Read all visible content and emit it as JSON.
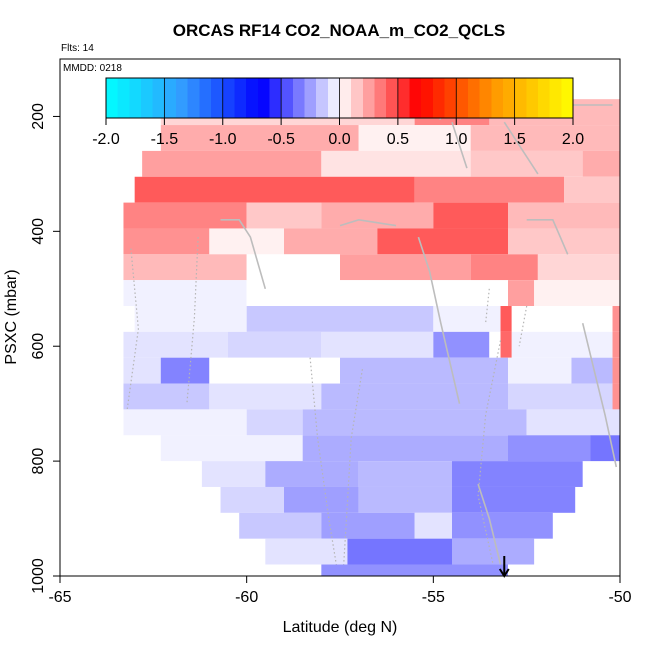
{
  "chart_data": {
    "type": "heatmap",
    "title": "ORCAS RF14 CO2_NOAA_m_CO2_QCLS",
    "flights_label": "Flts: 14",
    "date_label": "MMDD: 0218",
    "xlabel": "Latitude (deg N)",
    "ylabel": "PSXC (mbar)",
    "xlim": [
      -65,
      -50
    ],
    "ylim": [
      1000,
      100
    ],
    "x_ticks": [
      -65,
      -60,
      -55,
      -50
    ],
    "y_ticks": [
      200,
      400,
      600,
      800,
      1000
    ],
    "colorbar": {
      "range": [
        -2.0,
        2.0
      ],
      "ticks": [
        "-2.0",
        "-1.5",
        "-1.0",
        "-0.5",
        "0.0",
        "0.5",
        "1.0",
        "1.5",
        "2.0"
      ],
      "colors": [
        "#00ffff",
        "#3399ff",
        "#0000ff",
        "#ffffff",
        "#ff0000",
        "#ff9900",
        "#ffff00"
      ]
    },
    "cells": [
      {
        "lat0": -62.3,
        "lat1": -50,
        "p0": 170,
        "p1": 215,
        "value": 0.15
      },
      {
        "lat0": -55.5,
        "lat1": -53.5,
        "p0": 170,
        "p1": 215,
        "value": 0.45
      },
      {
        "lat0": -53.5,
        "lat1": -50,
        "p0": 170,
        "p1": 215,
        "value": 0.25
      },
      {
        "lat0": -62.3,
        "lat1": -57,
        "p0": 215,
        "p1": 260,
        "value": 0.3
      },
      {
        "lat0": -57,
        "lat1": -54,
        "p0": 215,
        "p1": 260,
        "value": 0.05
      },
      {
        "lat0": -54,
        "lat1": -50,
        "p0": 215,
        "p1": 260,
        "value": 0.25
      },
      {
        "lat0": -62.8,
        "lat1": -58,
        "p0": 260,
        "p1": 305,
        "value": 0.35
      },
      {
        "lat0": -58,
        "lat1": -54,
        "p0": 260,
        "p1": 305,
        "value": 0.1
      },
      {
        "lat0": -54,
        "lat1": -51,
        "p0": 260,
        "p1": 305,
        "value": 0.2
      },
      {
        "lat0": -51,
        "lat1": -50,
        "p0": 260,
        "p1": 305,
        "value": 0.3
      },
      {
        "lat0": -63,
        "lat1": -55.5,
        "p0": 305,
        "p1": 350,
        "value": 0.6
      },
      {
        "lat0": -55.5,
        "lat1": -51.5,
        "p0": 305,
        "p1": 350,
        "value": 0.45
      },
      {
        "lat0": -51.5,
        "lat1": -50,
        "p0": 305,
        "p1": 350,
        "value": 0.2
      },
      {
        "lat0": -63.3,
        "lat1": -60,
        "p0": 350,
        "p1": 395,
        "value": 0.45
      },
      {
        "lat0": -60,
        "lat1": -58,
        "p0": 350,
        "p1": 395,
        "value": 0.2
      },
      {
        "lat0": -58,
        "lat1": -55,
        "p0": 350,
        "p1": 395,
        "value": 0.3
      },
      {
        "lat0": -55,
        "lat1": -53,
        "p0": 350,
        "p1": 395,
        "value": 0.6
      },
      {
        "lat0": -53,
        "lat1": -50,
        "p0": 350,
        "p1": 395,
        "value": 0.25
      },
      {
        "lat0": -63.3,
        "lat1": -61,
        "p0": 395,
        "p1": 440,
        "value": 0.4
      },
      {
        "lat0": -61,
        "lat1": -59,
        "p0": 395,
        "p1": 440,
        "value": 0.05
      },
      {
        "lat0": -59,
        "lat1": -56.5,
        "p0": 395,
        "p1": 440,
        "value": 0.3
      },
      {
        "lat0": -56.5,
        "lat1": -53,
        "p0": 395,
        "p1": 440,
        "value": 0.6
      },
      {
        "lat0": -53,
        "lat1": -50,
        "p0": 395,
        "p1": 440,
        "value": 0.2
      },
      {
        "lat0": -63.3,
        "lat1": -60,
        "p0": 440,
        "p1": 485,
        "value": 0.25
      },
      {
        "lat0": -60,
        "lat1": -57.5,
        "p0": 440,
        "p1": 485,
        "value": 0.0
      },
      {
        "lat0": -57.5,
        "lat1": -54,
        "p0": 440,
        "p1": 485,
        "value": 0.35
      },
      {
        "lat0": -54,
        "lat1": -52.2,
        "p0": 440,
        "p1": 485,
        "value": 0.45
      },
      {
        "lat0": -52.2,
        "lat1": -50,
        "p0": 440,
        "p1": 485,
        "value": 0.15
      },
      {
        "lat0": -63.3,
        "lat1": -60,
        "p0": 485,
        "p1": 530,
        "value": -0.05
      },
      {
        "lat0": -60,
        "lat1": -53,
        "p0": 485,
        "p1": 530,
        "value": 0.0
      },
      {
        "lat0": -53,
        "lat1": -52.3,
        "p0": 485,
        "p1": 530,
        "value": 0.35
      },
      {
        "lat0": -52.3,
        "lat1": -50,
        "p0": 485,
        "p1": 530,
        "value": 0.05
      },
      {
        "lat0": -63,
        "lat1": -60,
        "p0": 530,
        "p1": 575,
        "value": -0.05
      },
      {
        "lat0": -60,
        "lat1": -55,
        "p0": 530,
        "p1": 575,
        "value": -0.2
      },
      {
        "lat0": -55,
        "lat1": -53.2,
        "p0": 530,
        "p1": 575,
        "value": -0.05
      },
      {
        "lat0": -53.2,
        "lat1": -52.9,
        "p0": 530,
        "p1": 575,
        "value": 0.6
      },
      {
        "lat0": -52.9,
        "lat1": -50.2,
        "p0": 530,
        "p1": 575,
        "value": 0.0
      },
      {
        "lat0": -50.2,
        "lat1": -50,
        "p0": 530,
        "p1": 575,
        "value": 0.4
      },
      {
        "lat0": -63.3,
        "lat1": -60.5,
        "p0": 575,
        "p1": 620,
        "value": -0.1
      },
      {
        "lat0": -60.5,
        "lat1": -58,
        "p0": 575,
        "p1": 620,
        "value": -0.15
      },
      {
        "lat0": -58,
        "lat1": -55,
        "p0": 575,
        "p1": 620,
        "value": -0.1
      },
      {
        "lat0": -55,
        "lat1": -53.5,
        "p0": 575,
        "p1": 620,
        "value": -0.4
      },
      {
        "lat0": -53.5,
        "lat1": -53.2,
        "p0": 575,
        "p1": 620,
        "value": 0.0
      },
      {
        "lat0": -53.2,
        "lat1": -52.9,
        "p0": 575,
        "p1": 620,
        "value": 0.55
      },
      {
        "lat0": -52.9,
        "lat1": -50.2,
        "p0": 575,
        "p1": 620,
        "value": -0.05
      },
      {
        "lat0": -50.2,
        "lat1": -50,
        "p0": 575,
        "p1": 620,
        "value": 0.4
      },
      {
        "lat0": -63.3,
        "lat1": -61,
        "p0": 620,
        "p1": 665,
        "value": -0.1
      },
      {
        "lat0": -62.3,
        "lat1": -61,
        "p0": 620,
        "p1": 665,
        "value": -0.45
      },
      {
        "lat0": -61,
        "lat1": -57.5,
        "p0": 620,
        "p1": 665,
        "value": 0.0
      },
      {
        "lat0": -57.5,
        "lat1": -53,
        "p0": 620,
        "p1": 665,
        "value": -0.25
      },
      {
        "lat0": -53,
        "lat1": -51.3,
        "p0": 620,
        "p1": 665,
        "value": -0.05
      },
      {
        "lat0": -51.3,
        "lat1": -50.2,
        "p0": 620,
        "p1": 665,
        "value": -0.25
      },
      {
        "lat0": -50.2,
        "lat1": -50,
        "p0": 620,
        "p1": 665,
        "value": 0.4
      },
      {
        "lat0": -63.3,
        "lat1": -61,
        "p0": 665,
        "p1": 710,
        "value": -0.2
      },
      {
        "lat0": -61,
        "lat1": -58,
        "p0": 665,
        "p1": 710,
        "value": -0.1
      },
      {
        "lat0": -58,
        "lat1": -53,
        "p0": 665,
        "p1": 710,
        "value": -0.25
      },
      {
        "lat0": -53,
        "lat1": -50.2,
        "p0": 665,
        "p1": 710,
        "value": -0.15
      },
      {
        "lat0": -50.2,
        "lat1": -50,
        "p0": 665,
        "p1": 710,
        "value": 0.4
      },
      {
        "lat0": -63.3,
        "lat1": -60,
        "p0": 710,
        "p1": 755,
        "value": -0.05
      },
      {
        "lat0": -60,
        "lat1": -58.5,
        "p0": 710,
        "p1": 755,
        "value": -0.15
      },
      {
        "lat0": -58.5,
        "lat1": -52.5,
        "p0": 710,
        "p1": 755,
        "value": -0.25
      },
      {
        "lat0": -52.5,
        "lat1": -50,
        "p0": 710,
        "p1": 755,
        "value": -0.1
      },
      {
        "lat0": -62.3,
        "lat1": -58.5,
        "p0": 755,
        "p1": 800,
        "value": -0.05
      },
      {
        "lat0": -58.5,
        "lat1": -53,
        "p0": 755,
        "p1": 800,
        "value": -0.3
      },
      {
        "lat0": -53,
        "lat1": -50.8,
        "p0": 755,
        "p1": 800,
        "value": -0.4
      },
      {
        "lat0": -50.8,
        "lat1": -50,
        "p0": 755,
        "p1": 800,
        "value": -0.5
      },
      {
        "lat0": -61.2,
        "lat1": -59.5,
        "p0": 800,
        "p1": 845,
        "value": -0.1
      },
      {
        "lat0": -59.5,
        "lat1": -57,
        "p0": 800,
        "p1": 845,
        "value": -0.3
      },
      {
        "lat0": -57,
        "lat1": -54.5,
        "p0": 800,
        "p1": 845,
        "value": -0.25
      },
      {
        "lat0": -54.5,
        "lat1": -51,
        "p0": 800,
        "p1": 845,
        "value": -0.45
      },
      {
        "lat0": -60.7,
        "lat1": -59,
        "p0": 845,
        "p1": 890,
        "value": -0.15
      },
      {
        "lat0": -59,
        "lat1": -57,
        "p0": 845,
        "p1": 890,
        "value": -0.35
      },
      {
        "lat0": -57,
        "lat1": -54.5,
        "p0": 845,
        "p1": 890,
        "value": -0.25
      },
      {
        "lat0": -54.5,
        "lat1": -51.2,
        "p0": 845,
        "p1": 890,
        "value": -0.45
      },
      {
        "lat0": -60.2,
        "lat1": -58,
        "p0": 890,
        "p1": 935,
        "value": -0.2
      },
      {
        "lat0": -58,
        "lat1": -55.5,
        "p0": 890,
        "p1": 935,
        "value": -0.35
      },
      {
        "lat0": -55.5,
        "lat1": -54.5,
        "p0": 890,
        "p1": 935,
        "value": -0.1
      },
      {
        "lat0": -54.5,
        "lat1": -51.8,
        "p0": 890,
        "p1": 935,
        "value": -0.4
      },
      {
        "lat0": -59.5,
        "lat1": -57.3,
        "p0": 935,
        "p1": 980,
        "value": -0.1
      },
      {
        "lat0": -57.3,
        "lat1": -54.5,
        "p0": 935,
        "p1": 980,
        "value": -0.5
      },
      {
        "lat0": -54.5,
        "lat1": -52.3,
        "p0": 935,
        "p1": 980,
        "value": -0.3
      },
      {
        "lat0": -58,
        "lat1": -53,
        "p0": 980,
        "p1": 1000,
        "value": -0.4
      }
    ],
    "flight_tracks": [
      [
        [
          -62.4,
          180
        ],
        [
          -61,
          180
        ],
        [
          -57,
          180
        ],
        [
          -55.5,
          180
        ],
        [
          -54.8,
          205
        ]
      ],
      [
        [
          -53.4,
          180
        ],
        [
          -51.5,
          180
        ],
        [
          -50.2,
          180
        ]
      ],
      [
        [
          -54.5,
          210
        ],
        [
          -54.1,
          290
        ]
      ],
      [
        [
          -53.1,
          210
        ],
        [
          -52.6,
          260
        ],
        [
          -52.2,
          300
        ]
      ],
      [
        [
          -60.7,
          380
        ],
        [
          -60.2,
          380
        ],
        [
          -59.9,
          410
        ],
        [
          -59.5,
          500
        ]
      ],
      [
        [
          -57.5,
          390
        ],
        [
          -57,
          380
        ],
        [
          -56.5,
          385
        ],
        [
          -56,
          390
        ]
      ],
      [
        [
          -55.4,
          410
        ],
        [
          -55.1,
          470
        ],
        [
          -54.8,
          560
        ],
        [
          -54.3,
          700
        ]
      ],
      [
        [
          -52.5,
          380
        ],
        [
          -51.8,
          380
        ],
        [
          -51.6,
          410
        ],
        [
          -51.4,
          440
        ]
      ],
      [
        [
          -53.8,
          840
        ],
        [
          -53.5,
          900
        ],
        [
          -53.2,
          980
        ]
      ],
      [
        [
          -51,
          560
        ],
        [
          -50.4,
          720
        ],
        [
          -50.1,
          810
        ]
      ]
    ],
    "dotted_tracks": [
      [
        [
          -63.1,
          430
        ],
        [
          -62.9,
          570
        ],
        [
          -63.2,
          710
        ]
      ],
      [
        [
          -61.3,
          410
        ],
        [
          -61.4,
          550
        ],
        [
          -61.6,
          700
        ]
      ],
      [
        [
          -58.3,
          620
        ],
        [
          -58.1,
          760
        ],
        [
          -57.8,
          900
        ],
        [
          -57.6,
          980
        ]
      ],
      [
        [
          -56.9,
          640
        ],
        [
          -57.2,
          760
        ],
        [
          -57.3,
          870
        ],
        [
          -57.4,
          980
        ]
      ],
      [
        [
          -53.2,
          590
        ],
        [
          -53.6,
          720
        ],
        [
          -53.8,
          860
        ],
        [
          -53.4,
          980
        ]
      ],
      [
        [
          -53.5,
          500
        ],
        [
          -53.6,
          560
        ]
      ],
      [
        [
          -52.5,
          530
        ],
        [
          -52.7,
          600
        ]
      ]
    ],
    "arrow_marker": {
      "lat": -53.1,
      "p": 1000
    }
  }
}
